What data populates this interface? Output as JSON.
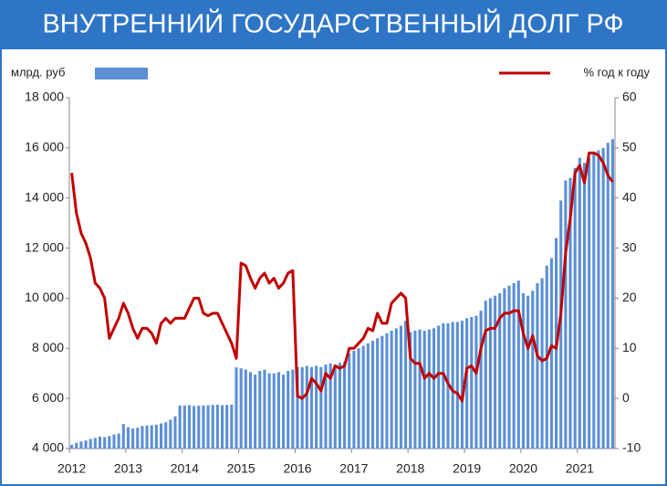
{
  "chart_data": {
    "type": "bar_line",
    "title": "ВНУТРЕННИЙ ГОСУДАРСТВЕННЫЙ ДОЛГ РФ",
    "categories": [
      "2012",
      null,
      null,
      null,
      null,
      null,
      null,
      null,
      null,
      null,
      null,
      null,
      "2013",
      null,
      null,
      null,
      null,
      null,
      null,
      null,
      null,
      null,
      null,
      null,
      "2014",
      null,
      null,
      null,
      null,
      null,
      null,
      null,
      null,
      null,
      null,
      null,
      "2015",
      null,
      null,
      null,
      null,
      null,
      null,
      null,
      null,
      null,
      null,
      null,
      "2016",
      null,
      null,
      null,
      null,
      null,
      null,
      null,
      null,
      null,
      null,
      null,
      "2017",
      null,
      null,
      null,
      null,
      null,
      null,
      null,
      null,
      null,
      null,
      null,
      "2018",
      null,
      null,
      null,
      null,
      null,
      null,
      null,
      null,
      null,
      null,
      null,
      "2019",
      null,
      null,
      null,
      null,
      null,
      null,
      null,
      null,
      null,
      null,
      null,
      "2020",
      null,
      null,
      null,
      null,
      null,
      null,
      null,
      null,
      null,
      null,
      null,
      "2021",
      null,
      null,
      null,
      null,
      null,
      null,
      null
    ],
    "series": [
      {
        "name": "млрд. руб",
        "color": "#5b8fd6",
        "kind": "bar",
        "values": [
          4150,
          4230,
          4280,
          4320,
          4380,
          4420,
          4480,
          4460,
          4500,
          4560,
          4600,
          4980,
          4850,
          4800,
          4830,
          4900,
          4920,
          4930,
          4950,
          5000,
          5050,
          5150,
          5280,
          5720,
          5720,
          5730,
          5700,
          5710,
          5720,
          5730,
          5740,
          5750,
          5730,
          5740,
          5750,
          7240,
          7200,
          7150,
          7050,
          6950,
          7100,
          7150,
          7000,
          7000,
          7050,
          6950,
          7100,
          7150,
          7250,
          7250,
          7300,
          7250,
          7300,
          7250,
          7350,
          7400,
          7350,
          7420,
          7450,
          7800,
          7900,
          8000,
          8100,
          8200,
          8300,
          8400,
          8500,
          8600,
          8700,
          8800,
          8900,
          9100,
          8650,
          8700,
          8750,
          8700,
          8750,
          8800,
          8900,
          9000,
          9000,
          9050,
          9050,
          9100,
          9200,
          9250,
          9300,
          9500,
          9900,
          10000,
          10100,
          10200,
          10400,
          10500,
          10600,
          10700,
          10200,
          10100,
          10300,
          10600,
          10800,
          11300,
          11600,
          12400,
          13900,
          14700,
          14800,
          15200,
          15600,
          15400,
          15600,
          15800,
          15900,
          16000,
          16200,
          16350
        ]
      },
      {
        "name": "% год к году",
        "color": "#c00000",
        "kind": "line",
        "axis": "y2",
        "values": [
          45,
          37,
          33,
          31,
          28,
          23,
          22,
          20,
          12,
          14,
          16,
          19,
          17,
          14,
          12,
          14,
          14,
          13,
          11,
          15,
          16,
          15,
          16,
          16,
          16,
          18,
          20,
          20,
          17,
          16.5,
          17,
          17,
          15,
          13,
          11,
          8,
          27,
          26.5,
          24,
          22,
          24,
          25,
          23,
          24,
          22,
          23,
          25,
          25.5,
          0.5,
          0,
          1,
          4,
          3,
          1.5,
          5,
          4,
          6.5,
          6,
          6.5,
          10,
          10,
          11,
          12,
          14,
          13.5,
          17,
          15,
          15,
          19,
          20,
          21,
          20,
          8,
          7,
          7,
          4,
          5,
          4,
          5,
          5,
          3,
          1.5,
          1,
          -0.5,
          6,
          6.5,
          5,
          10,
          13.5,
          14,
          14,
          16,
          17,
          17,
          17.5,
          17.5,
          13,
          10,
          12.5,
          8.5,
          7.5,
          8,
          10.5,
          10,
          17,
          29,
          36,
          45,
          46.5,
          43,
          49,
          49,
          48.5,
          47,
          44.5,
          43.2
        ]
      }
    ],
    "ylim": [
      4000,
      18000
    ],
    "yticks": [
      {
        "value": 4000,
        "label": "4 000"
      },
      {
        "value": 6000,
        "label": "6 000"
      },
      {
        "value": 8000,
        "label": "8 000"
      },
      {
        "value": 10000,
        "label": "10 000"
      },
      {
        "value": 12000,
        "label": "12 000"
      },
      {
        "value": 14000,
        "label": "14 000"
      },
      {
        "value": 16000,
        "label": "16 000"
      },
      {
        "value": 18000,
        "label": "18 000"
      }
    ],
    "y2lim": [
      -10,
      60
    ],
    "y2ticks": [
      -10,
      0,
      10,
      20,
      30,
      40,
      50,
      60
    ]
  }
}
